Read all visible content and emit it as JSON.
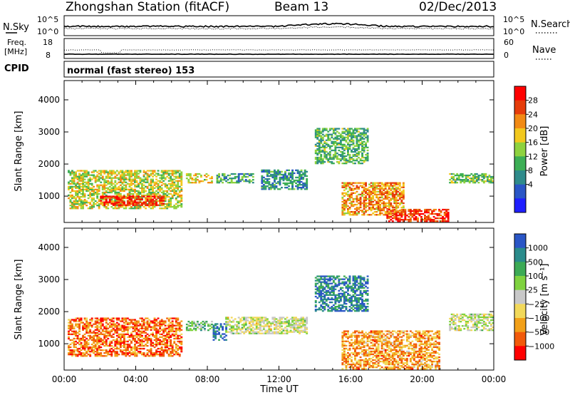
{
  "header": {
    "station": "Zhongshan Station (fitACF)",
    "beam": "Beam 13",
    "date": "02/Dec/2013"
  },
  "strip": {
    "nsky_label": "N.Sky",
    "nsearch_label": "N.Search",
    "nsky_ticks": [
      "10^5",
      "10^0"
    ],
    "nsearch_ticks": [
      "10^5",
      "10^0"
    ],
    "freq_label_line1": "Freq.",
    "freq_label_line2": "[MHz]",
    "freq_ticks": [
      "18",
      "8"
    ],
    "nave_label": "Nave",
    "nave_ticks": [
      "60",
      "0"
    ],
    "cpid_label": "CPID",
    "cpid_text": "normal (fast stereo) 153"
  },
  "chart_data": [
    {
      "type": "heatmap",
      "name": "power-panel",
      "ylabel": "Slant Range [km]",
      "y_ticks": [
        "1000",
        "2000",
        "3000",
        "4000"
      ],
      "xlim_hours": [
        0,
        24
      ],
      "ylim": [
        180,
        4600
      ],
      "colorbar": {
        "label": "Power [dB]",
        "ticks": [
          "28",
          "24",
          "20",
          "16",
          "12",
          "8",
          "4"
        ],
        "colors": [
          "#1f1fff",
          "#2a56c6",
          "#2f8b8b",
          "#3cae55",
          "#8ed23f",
          "#f2c81e",
          "#f28a14",
          "#e63c0a",
          "#ff0000"
        ]
      },
      "echo_regions": [
        {
          "t0": 0.2,
          "t1": 6.5,
          "r0": 600,
          "r1": 1800,
          "level": 0.55
        },
        {
          "t0": 2.0,
          "t1": 5.5,
          "r0": 700,
          "r1": 1000,
          "level": 0.9
        },
        {
          "t0": 6.8,
          "t1": 8.2,
          "r0": 1400,
          "r1": 1700,
          "level": 0.6
        },
        {
          "t0": 8.5,
          "t1": 10.5,
          "r0": 1400,
          "r1": 1700,
          "level": 0.35
        },
        {
          "t0": 11.0,
          "t1": 13.5,
          "r0": 1200,
          "r1": 1800,
          "level": 0.3
        },
        {
          "t0": 14.0,
          "t1": 17.0,
          "r0": 2000,
          "r1": 3100,
          "level": 0.4
        },
        {
          "t0": 15.5,
          "t1": 19.0,
          "r0": 400,
          "r1": 1400,
          "level": 0.7
        },
        {
          "t0": 18.0,
          "t1": 21.5,
          "r0": 200,
          "r1": 600,
          "level": 0.85
        },
        {
          "t0": 21.5,
          "t1": 24.0,
          "r0": 1400,
          "r1": 1700,
          "level": 0.45
        }
      ]
    },
    {
      "type": "heatmap",
      "name": "velocity-panel",
      "ylabel": "Slant Range [km]",
      "y_ticks": [
        "1000",
        "2000",
        "3000",
        "4000"
      ],
      "x_ticks": [
        "00:00",
        "04:00",
        "08:00",
        "12:00",
        "16:00",
        "20:00",
        "00:00"
      ],
      "xlabel": "Time UT",
      "xlim_hours": [
        0,
        24
      ],
      "ylim": [
        180,
        4600
      ],
      "colorbar": {
        "label": "Velocity [m s⁻¹]",
        "ticks": [
          "1000",
          "500",
          "100",
          "25",
          "−25",
          "−100",
          "−500",
          "−1000"
        ],
        "colors": [
          "#ff0000",
          "#f25a0a",
          "#f2a019",
          "#f2d95a",
          "#c8c8c8",
          "#7fd23f",
          "#3caa55",
          "#2a8b8b",
          "#2a56c6"
        ]
      },
      "echo_regions": [
        {
          "t0": 0.2,
          "t1": 6.5,
          "r0": 600,
          "r1": 1800,
          "level": 0.2
        },
        {
          "t0": 6.8,
          "t1": 8.2,
          "r0": 1400,
          "r1": 1700,
          "level": 0.65
        },
        {
          "t0": 8.3,
          "t1": 9.0,
          "r0": 1100,
          "r1": 1600,
          "level": 0.9
        },
        {
          "t0": 9.0,
          "t1": 13.5,
          "r0": 1300,
          "r1": 1800,
          "level": 0.5
        },
        {
          "t0": 14.0,
          "t1": 17.0,
          "r0": 2000,
          "r1": 3100,
          "level": 0.85
        },
        {
          "t0": 15.5,
          "t1": 21.0,
          "r0": 200,
          "r1": 1400,
          "level": 0.28
        },
        {
          "t0": 21.5,
          "t1": 24.0,
          "r0": 1400,
          "r1": 1900,
          "level": 0.5
        }
      ]
    }
  ]
}
